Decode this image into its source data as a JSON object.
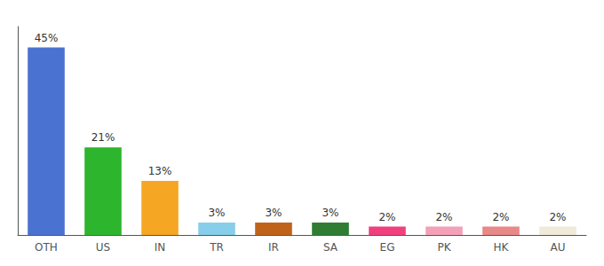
{
  "chart_data": {
    "type": "bar",
    "categories": [
      "OTH",
      "US",
      "IN",
      "TR",
      "IR",
      "SA",
      "EG",
      "PK",
      "HK",
      "AU"
    ],
    "values": [
      45,
      21,
      13,
      3,
      3,
      3,
      2,
      2,
      2,
      2
    ],
    "value_labels": [
      "45%",
      "21%",
      "13%",
      "3%",
      "3%",
      "3%",
      "2%",
      "2%",
      "2%",
      "2%"
    ],
    "colors": [
      "#4a72d1",
      "#2db52d",
      "#f5a623",
      "#87ceeb",
      "#c0631a",
      "#2e7d32",
      "#f0407e",
      "#f4a0b8",
      "#e88888",
      "#f0ead8"
    ],
    "data_labels": true,
    "ylim": [
      0,
      50
    ],
    "tick_labels": "x",
    "grid": false
  }
}
